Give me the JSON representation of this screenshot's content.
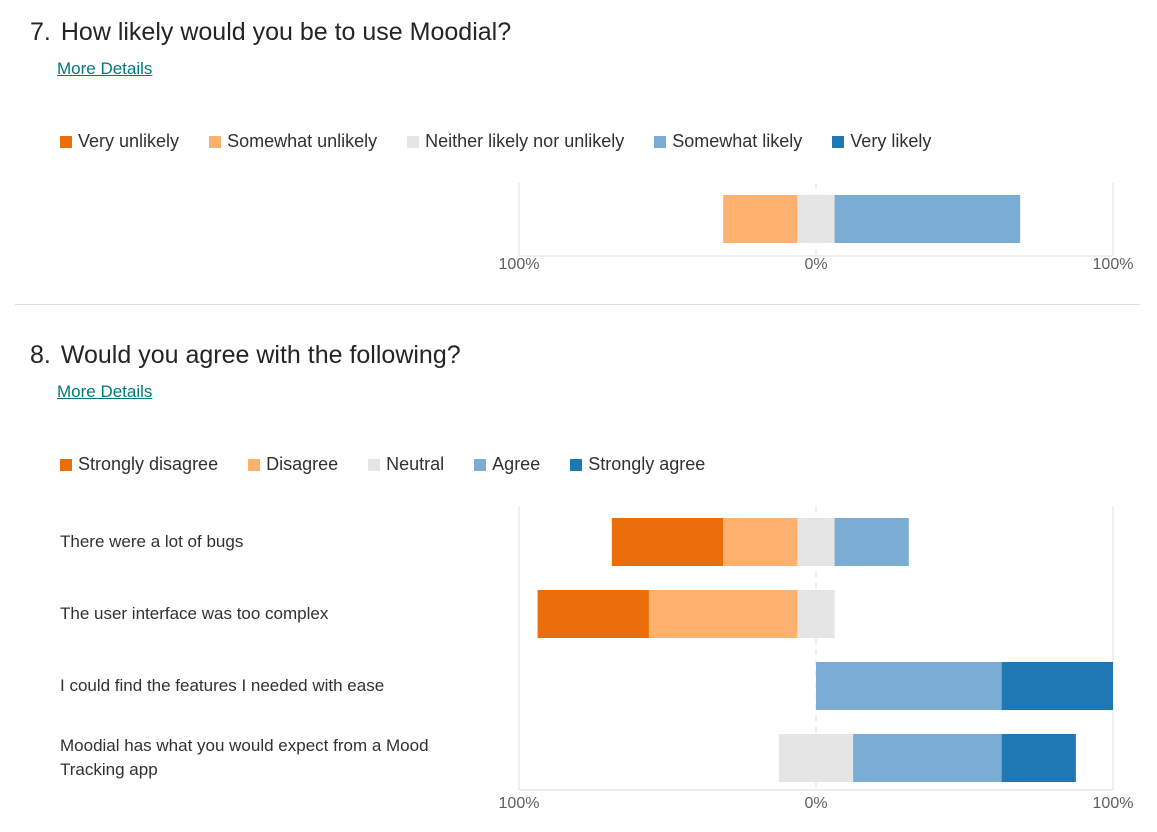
{
  "questions": [
    {
      "number": "7.",
      "title": "How likely would you be to use Moodial?",
      "more_details": "More Details"
    },
    {
      "number": "8.",
      "title": "Would you agree with the following?",
      "more_details": "More Details"
    }
  ],
  "chart_data": [
    {
      "type": "bar",
      "subtype": "diverging-stacked-horizontal",
      "legend": [
        "Very unlikely",
        "Somewhat unlikely",
        "Neither likely nor unlikely",
        "Somewhat likely",
        "Very likely"
      ],
      "colors": [
        "#ea6f0b",
        "#feb06e",
        "#e5e5e5",
        "#7aadd4",
        "#1f78b4"
      ],
      "categories": [
        ""
      ],
      "series": [
        {
          "name": "Very unlikely",
          "values": [
            0
          ]
        },
        {
          "name": "Somewhat unlikely",
          "values": [
            25
          ]
        },
        {
          "name": "Neither likely nor unlikely",
          "values": [
            12.5
          ]
        },
        {
          "name": "Somewhat likely",
          "values": [
            62.5
          ]
        },
        {
          "name": "Very likely",
          "values": [
            0
          ]
        }
      ],
      "xlim": [
        -100,
        100
      ],
      "tick_labels": [
        "100%",
        "0%",
        "100%"
      ],
      "legend_position": "top-left"
    },
    {
      "type": "bar",
      "subtype": "diverging-stacked-horizontal",
      "legend": [
        "Strongly disagree",
        "Disagree",
        "Neutral",
        "Agree",
        "Strongly agree"
      ],
      "colors": [
        "#ea6f0b",
        "#feb06e",
        "#e5e5e5",
        "#7aadd4",
        "#1f78b4"
      ],
      "categories": [
        "There were a lot of bugs",
        "The user interface was too complex",
        "I could find the features I needed with ease",
        "Moodial has what you would expect from a Mood Tracking app"
      ],
      "series": [
        {
          "name": "Strongly disagree",
          "values": [
            37.5,
            37.5,
            0,
            0
          ]
        },
        {
          "name": "Disagree",
          "values": [
            25,
            50,
            0,
            0
          ]
        },
        {
          "name": "Neutral",
          "values": [
            12.5,
            12.5,
            0,
            25
          ]
        },
        {
          "name": "Agree",
          "values": [
            25,
            0,
            62.5,
            50
          ]
        },
        {
          "name": "Strongly agree",
          "values": [
            0,
            0,
            37.5,
            25
          ]
        }
      ],
      "xlim": [
        -100,
        100
      ],
      "tick_labels": [
        "100%",
        "0%",
        "100%"
      ],
      "legend_position": "top-left"
    }
  ]
}
